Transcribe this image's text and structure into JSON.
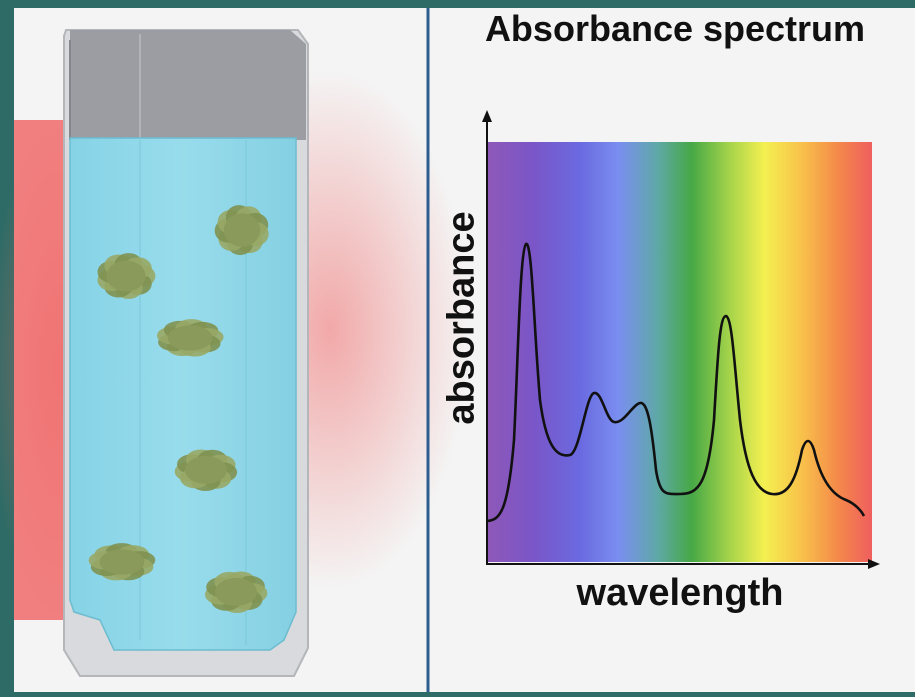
{
  "diagram": {
    "title": "Absorbance spectrum",
    "xlabel": "wavelength",
    "ylabel": "absorbance",
    "colors": {
      "background_frame": "#2f6b66",
      "panel": "#f4f4f4",
      "divider": "#2e5d8f",
      "solution": "#8fd8e8",
      "cuvette_cap": "#9a9ba0",
      "algae": "#8a9a5b",
      "light_glow": "#f06a6a",
      "curve": "#111111"
    },
    "spectrum_colors": [
      "#8e58b8",
      "#6a5ad8",
      "#6f82ea",
      "#5fb0a0",
      "#4cb04a",
      "#a8d84a",
      "#f4f050",
      "#f8c84a",
      "#f48848",
      "#f06060"
    ]
  }
}
